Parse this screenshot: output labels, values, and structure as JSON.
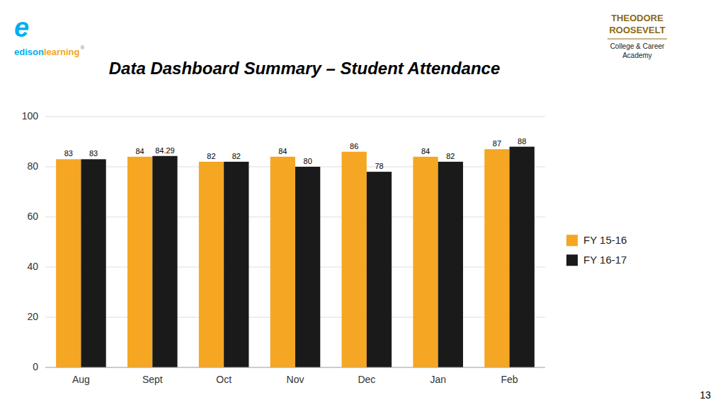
{
  "chart_data": {
    "type": "bar",
    "title": "Data Dashboard Summary – Student Attendance",
    "categories": [
      "Aug",
      "Sept",
      "Oct",
      "Nov",
      "Dec",
      "Jan",
      "Feb"
    ],
    "series": [
      {
        "name": "FY 15-16",
        "color": "#F5A623",
        "values": [
          83,
          84,
          82,
          84,
          86,
          84,
          87
        ]
      },
      {
        "name": "FY 16-17",
        "color": "#1A1A1A",
        "values": [
          83,
          84.29,
          82,
          80,
          78,
          82,
          88
        ]
      }
    ],
    "ylim": [
      0,
      100
    ],
    "yticks": [
      0,
      20,
      40,
      60,
      80,
      100
    ],
    "grid": true,
    "data_labels": true,
    "legend": "right",
    "annotations": [
      "e",
      "edison",
      "learning",
      "®",
      "THEODORE",
      "ROOSEVELT",
      "College & Career",
      "Academy",
      "13"
    ]
  }
}
